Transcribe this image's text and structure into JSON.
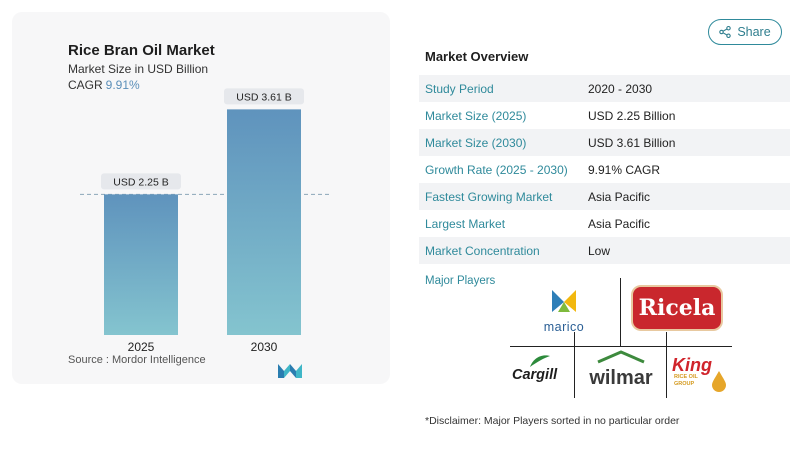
{
  "chart_data": {
    "type": "bar",
    "title": "Rice Bran Oil Market",
    "subtitle": "Market Size in USD Billion",
    "cagr_label": "CAGR",
    "cagr_value": "9.91%",
    "categories": [
      "2025",
      "2030"
    ],
    "values": [
      2.25,
      3.61
    ],
    "data_labels": [
      "USD 2.25 B",
      "USD 3.61 B"
    ],
    "ylim": [
      0,
      4.0
    ],
    "reference_line": "dashed at 2025 value",
    "grid": false,
    "bar_color_top": "#5f93bd",
    "bar_color_bottom": "#84c4cf"
  },
  "source": "Source :  Mordor Intelligence",
  "share_label": "Share",
  "overview": {
    "title": "Market Overview",
    "rows": [
      {
        "label": "Study Period",
        "value": "2020 - 2030"
      },
      {
        "label": "Market Size (2025)",
        "value": "USD 2.25 Billion"
      },
      {
        "label": "Market Size (2030)",
        "value": "USD 3.61 Billion"
      },
      {
        "label": "Growth Rate (2025 - 2030)",
        "value": "9.91% CAGR"
      },
      {
        "label": "Fastest Growing Market",
        "value": "Asia Pacific"
      },
      {
        "label": "Largest Market",
        "value": "Asia Pacific"
      },
      {
        "label": "Market Concentration",
        "value": "Low"
      }
    ]
  },
  "players": {
    "title": "Major Players",
    "logos": {
      "marico": "marico",
      "ricela": "Ricela",
      "cargill": "Cargill",
      "wilmar": "wilmar",
      "king": "King",
      "king_sub": "RICE OIL GROUP"
    }
  },
  "disclaimer": "*Disclaimer: Major Players sorted in no particular order",
  "colors": {
    "accent": "#2f8a9b",
    "cagr": "#5b8fb9",
    "ricela_red": "#c9272d",
    "wilmar_green": "#3d8a3d",
    "king_red": "#d0242b"
  }
}
